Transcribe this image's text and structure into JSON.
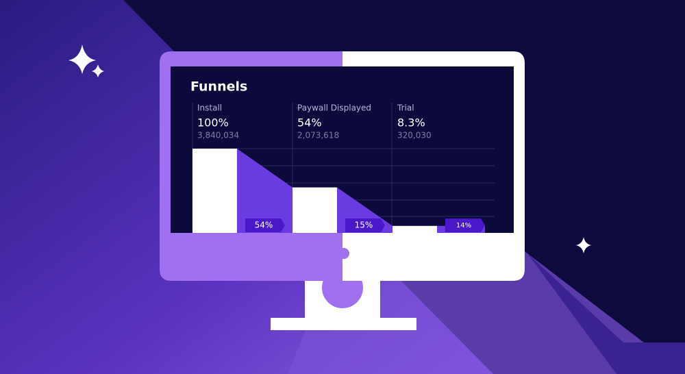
{
  "chart_data": {
    "type": "funnel",
    "title": "Funnels",
    "categories": [
      "Install",
      "Paywall Displayed",
      "Trial"
    ],
    "values": [
      100,
      54,
      8.3
    ],
    "value_labels": [
      "100%",
      "54%",
      "8.3%"
    ],
    "counts": [
      "3,840,034",
      "2,073,618",
      "320,030"
    ],
    "conversion_labels": [
      "54%",
      "15%",
      "14%"
    ],
    "ylim": [
      0,
      100
    ],
    "color": "#ffffff",
    "area_color": "#6a3be0",
    "tag_color": "#4a18c8"
  }
}
